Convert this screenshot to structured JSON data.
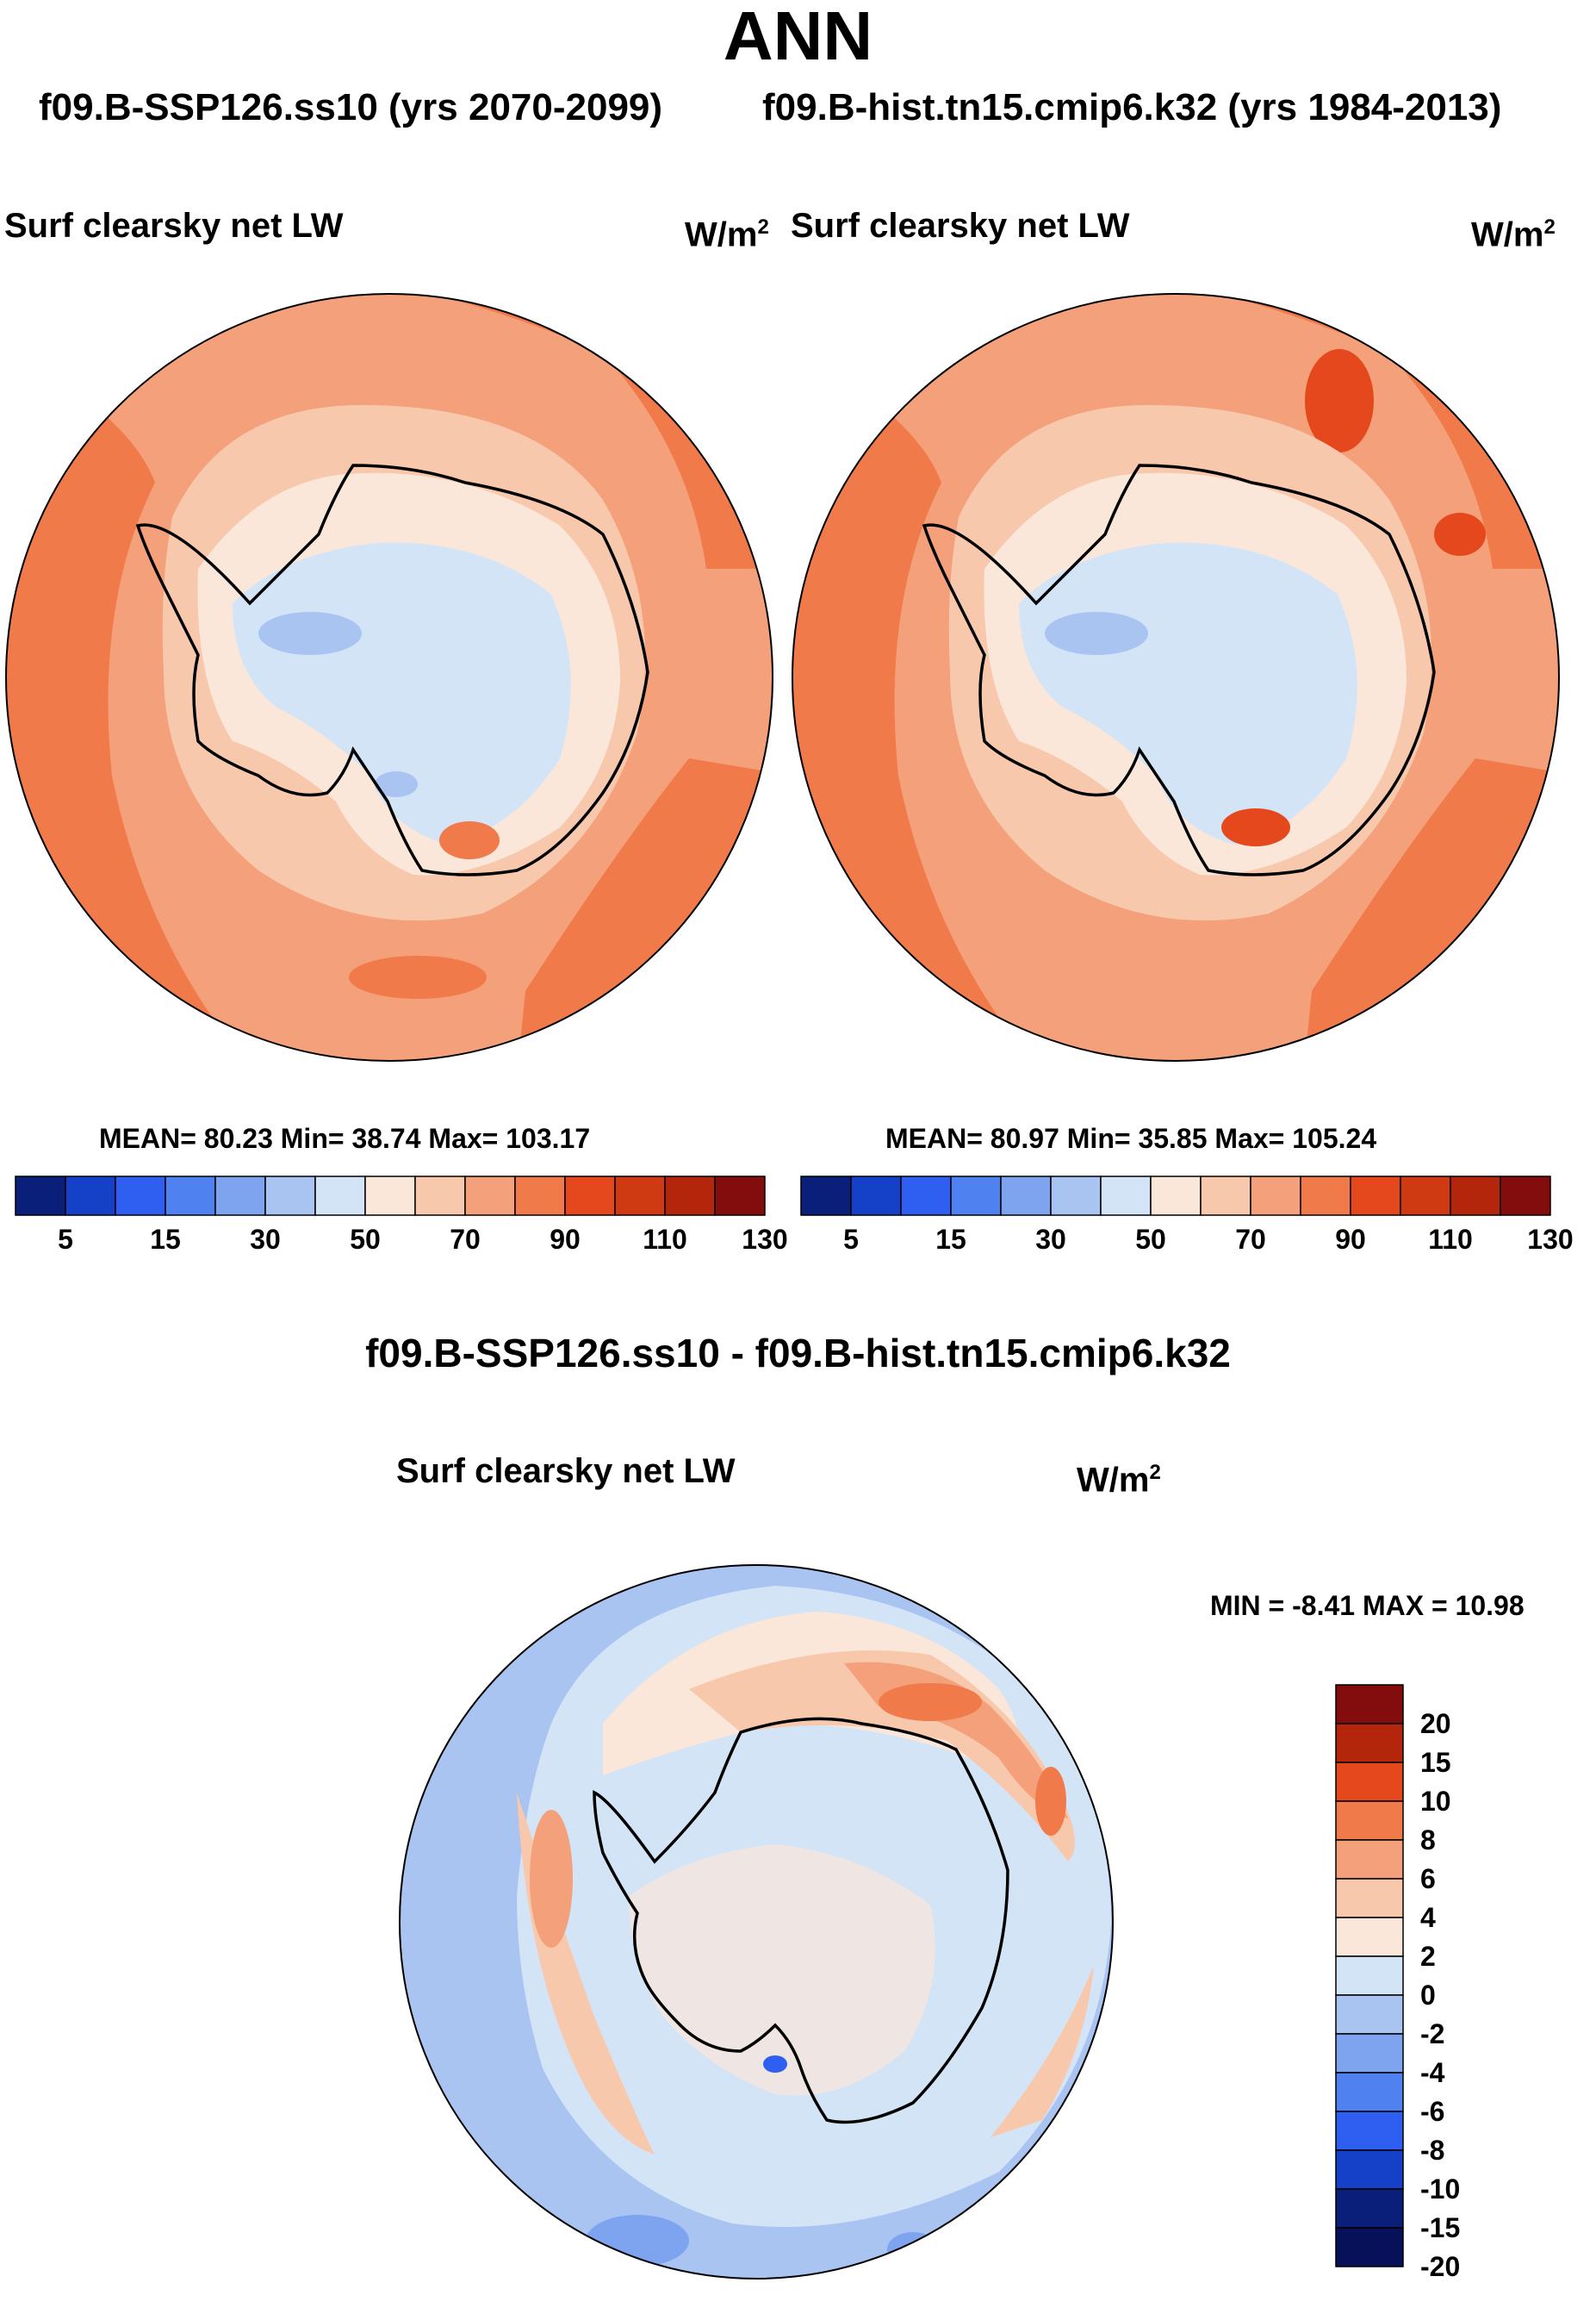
{
  "main_title": "ANN",
  "case_a": "f09.B-SSP126.ss10 (yrs 2070-2099)",
  "case_b": "f09.B-hist.tn15.cmip6.k32 (yrs 1984-2013)",
  "panels": [
    {
      "title": "Surf clearsky net LW",
      "units_base": "W/m",
      "units_exp": "2",
      "stats_text": "MEAN=  80.23  Min=  38.74  Max= 103.17"
    },
    {
      "title": "Surf clearsky net LW",
      "units_base": "W/m",
      "units_exp": "2",
      "stats_text": "MEAN=  80.97  Min=  35.85  Max= 105.24"
    }
  ],
  "diff": {
    "title": "f09.B-SSP126.ss10 - f09.B-hist.tn15.cmip6.k32",
    "plot_title": "Surf clearsky net LW",
    "units_base": "W/m",
    "units_exp": "2",
    "minmax_text": "MIN =  -8.41 MAX =  10.98"
  },
  "chart_data": [
    {
      "type": "heatmap",
      "projection": "south polar stereographic",
      "title": "Surf clearsky net LW",
      "units": "W/m2",
      "mean": 80.23,
      "min": 38.74,
      "max": 103.17,
      "colorbar": {
        "tick_labels": [
          "5",
          "15",
          "30",
          "50",
          "70",
          "90",
          "110",
          "130"
        ],
        "colors": [
          "#0a1f7a",
          "#1540c8",
          "#2e5ff0",
          "#4f82f0",
          "#7ea3ef",
          "#aac4f2",
          "#d3e4f7",
          "#fbe7da",
          "#f8c8ad",
          "#f4a07a",
          "#f07a4a",
          "#e5481c",
          "#d03a12",
          "#b3260c",
          "#830c0c"
        ]
      }
    },
    {
      "type": "heatmap",
      "projection": "south polar stereographic",
      "title": "Surf clearsky net LW",
      "units": "W/m2",
      "mean": 80.97,
      "min": 35.85,
      "max": 105.24,
      "colorbar": {
        "tick_labels": [
          "5",
          "15",
          "30",
          "50",
          "70",
          "90",
          "110",
          "130"
        ],
        "colors": [
          "#0a1f7a",
          "#1540c8",
          "#2e5ff0",
          "#4f82f0",
          "#7ea3ef",
          "#aac4f2",
          "#d3e4f7",
          "#fbe7da",
          "#f8c8ad",
          "#f4a07a",
          "#f07a4a",
          "#e5481c",
          "#d03a12",
          "#b3260c",
          "#830c0c"
        ]
      }
    },
    {
      "type": "heatmap",
      "projection": "south polar stereographic",
      "title": "Surf clearsky net LW",
      "units": "W/m2",
      "min": -8.41,
      "max": 10.98,
      "colorbar": {
        "tick_labels": [
          "20",
          "15",
          "10",
          "8",
          "6",
          "4",
          "2",
          "0",
          "-2",
          "-4",
          "-6",
          "-8",
          "-10",
          "-15",
          "-20"
        ],
        "colors": [
          "#830c0c",
          "#b3260c",
          "#e5481c",
          "#f07a4a",
          "#f4a07a",
          "#f8c8ad",
          "#fbe7da",
          "#d3e4f7",
          "#aac4f2",
          "#7ea3ef",
          "#4f82f0",
          "#2e5ff0",
          "#1540c8",
          "#0a1f7a",
          "#06115a"
        ]
      }
    }
  ]
}
